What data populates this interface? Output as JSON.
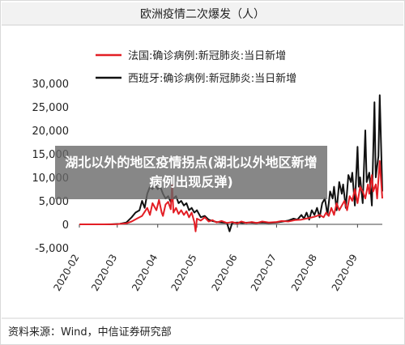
{
  "chart_data": {
    "type": "line",
    "title": "欧洲疫情二次爆发（人）",
    "xlabel": "",
    "ylabel": "",
    "ylim": [
      -5000,
      30000
    ],
    "yticks": [
      "30,000",
      "25,000",
      "20,000",
      "15,000",
      "10,000",
      "5,000",
      "0",
      "-5,000"
    ],
    "ytick_values": [
      30000,
      25000,
      20000,
      15000,
      10000,
      5000,
      0,
      -5000
    ],
    "xticks": [
      "2020-02",
      "2020-03",
      "2020-04",
      "2020-05",
      "2020-06",
      "2020-07",
      "2020-08",
      "2020-09"
    ],
    "xlim": [
      "2020-02-01",
      "2020-09-20"
    ],
    "grid": false,
    "legend_position": "top-left",
    "series": [
      {
        "name": "法国:确诊病例:新冠肺炎:当日新增",
        "color": "#e31e25",
        "points": [
          [
            "2020-02-01",
            0
          ],
          [
            "2020-02-20",
            0
          ],
          [
            "2020-03-01",
            50
          ],
          [
            "2020-03-08",
            200
          ],
          [
            "2020-03-12",
            600
          ],
          [
            "2020-03-16",
            1200
          ],
          [
            "2020-03-20",
            1800
          ],
          [
            "2020-03-24",
            3500
          ],
          [
            "2020-03-26",
            2000
          ],
          [
            "2020-03-28",
            4500
          ],
          [
            "2020-03-31",
            3000
          ],
          [
            "2020-04-02",
            5200
          ],
          [
            "2020-04-04",
            2500
          ],
          [
            "2020-04-05",
            1800
          ],
          [
            "2020-04-07",
            4200
          ],
          [
            "2020-04-09",
            4800
          ],
          [
            "2020-04-11",
            3200
          ],
          [
            "2020-04-12",
            8500
          ],
          [
            "2020-04-13",
            2500
          ],
          [
            "2020-04-15",
            3500
          ],
          [
            "2020-04-17",
            2200
          ],
          [
            "2020-04-19",
            3000
          ],
          [
            "2020-04-21",
            2000
          ],
          [
            "2020-04-23",
            2800
          ],
          [
            "2020-04-25",
            1500
          ],
          [
            "2020-04-27",
            2500
          ],
          [
            "2020-04-29",
            500
          ],
          [
            "2020-04-30",
            -1500
          ],
          [
            "2020-05-01",
            1200
          ],
          [
            "2020-05-04",
            800
          ],
          [
            "2020-05-07",
            1500
          ],
          [
            "2020-05-10",
            600
          ],
          [
            "2020-05-13",
            900
          ],
          [
            "2020-05-16",
            400
          ],
          [
            "2020-05-20",
            700
          ],
          [
            "2020-05-24",
            300
          ],
          [
            "2020-05-28",
            500
          ],
          [
            "2020-06-01",
            200
          ],
          [
            "2020-06-04",
            600
          ],
          [
            "2020-06-08",
            300
          ],
          [
            "2020-06-12",
            500
          ],
          [
            "2020-06-16",
            300
          ],
          [
            "2020-06-20",
            600
          ],
          [
            "2020-06-25",
            400
          ],
          [
            "2020-07-01",
            500
          ],
          [
            "2020-07-05",
            700
          ],
          [
            "2020-07-10",
            600
          ],
          [
            "2020-07-15",
            900
          ],
          [
            "2020-07-20",
            1000
          ],
          [
            "2020-07-25",
            1300
          ],
          [
            "2020-07-30",
            1600
          ],
          [
            "2020-08-03",
            2000
          ],
          [
            "2020-08-06",
            1500
          ],
          [
            "2020-08-08",
            2500
          ],
          [
            "2020-08-10",
            1800
          ],
          [
            "2020-08-12",
            3500
          ],
          [
            "2020-08-14",
            2000
          ],
          [
            "2020-08-16",
            4500
          ],
          [
            "2020-08-18",
            3000
          ],
          [
            "2020-08-20",
            4000
          ],
          [
            "2020-08-22",
            5000
          ],
          [
            "2020-08-24",
            3000
          ],
          [
            "2020-08-26",
            6000
          ],
          [
            "2020-08-28",
            5000
          ],
          [
            "2020-08-30",
            7500
          ],
          [
            "2020-09-01",
            4500
          ],
          [
            "2020-09-03",
            8000
          ],
          [
            "2020-09-05",
            7000
          ],
          [
            "2020-09-07",
            5500
          ],
          [
            "2020-09-09",
            8500
          ],
          [
            "2020-09-10",
            6500
          ],
          [
            "2020-09-12",
            10500
          ],
          [
            "2020-09-13",
            7000
          ],
          [
            "2020-09-15",
            8500
          ],
          [
            "2020-09-16",
            5500
          ],
          [
            "2020-09-18",
            13500
          ],
          [
            "2020-09-20",
            5500
          ]
        ]
      },
      {
        "name": "西班牙:确诊病例:新冠肺炎:当日新增",
        "color": "#111111",
        "points": [
          [
            "2020-02-01",
            0
          ],
          [
            "2020-02-25",
            0
          ],
          [
            "2020-03-03",
            100
          ],
          [
            "2020-03-08",
            400
          ],
          [
            "2020-03-12",
            1500
          ],
          [
            "2020-03-15",
            2500
          ],
          [
            "2020-03-18",
            3000
          ],
          [
            "2020-03-20",
            5000
          ],
          [
            "2020-03-22",
            3500
          ],
          [
            "2020-03-24",
            6500
          ],
          [
            "2020-03-26",
            8000
          ],
          [
            "2020-03-28",
            7500
          ],
          [
            "2020-03-30",
            8500
          ],
          [
            "2020-04-01",
            7500
          ],
          [
            "2020-04-03",
            8000
          ],
          [
            "2020-04-05",
            6500
          ],
          [
            "2020-04-07",
            5500
          ],
          [
            "2020-04-09",
            6000
          ],
          [
            "2020-04-11",
            4800
          ],
          [
            "2020-04-13",
            5500
          ],
          [
            "2020-04-15",
            6000
          ],
          [
            "2020-04-17",
            4500
          ],
          [
            "2020-04-19",
            5000
          ],
          [
            "2020-04-21",
            4000
          ],
          [
            "2020-04-23",
            4500
          ],
          [
            "2020-04-25",
            3000
          ],
          [
            "2020-04-27",
            3500
          ],
          [
            "2020-04-29",
            2500
          ],
          [
            "2020-05-01",
            3000
          ],
          [
            "2020-05-04",
            1500
          ],
          [
            "2020-05-07",
            1800
          ],
          [
            "2020-05-10",
            1000
          ],
          [
            "2020-05-13",
            700
          ],
          [
            "2020-05-16",
            500
          ],
          [
            "2020-05-20",
            400
          ],
          [
            "2020-05-24",
            300
          ],
          [
            "2020-05-26",
            -1500
          ],
          [
            "2020-05-28",
            300
          ],
          [
            "2020-06-01",
            400
          ],
          [
            "2020-06-05",
            300
          ],
          [
            "2020-06-10",
            400
          ],
          [
            "2020-06-15",
            300
          ],
          [
            "2020-06-20",
            400
          ],
          [
            "2020-06-25",
            300
          ],
          [
            "2020-07-01",
            400
          ],
          [
            "2020-07-06",
            600
          ],
          [
            "2020-07-10",
            800
          ],
          [
            "2020-07-14",
            1200
          ],
          [
            "2020-07-17",
            1000
          ],
          [
            "2020-07-20",
            2000
          ],
          [
            "2020-07-22",
            1200
          ],
          [
            "2020-07-24",
            2500
          ],
          [
            "2020-07-26",
            1000
          ],
          [
            "2020-07-28",
            3000
          ],
          [
            "2020-07-30",
            2000
          ],
          [
            "2020-08-01",
            3500
          ],
          [
            "2020-08-03",
            1500
          ],
          [
            "2020-08-05",
            4500
          ],
          [
            "2020-08-07",
            5500
          ],
          [
            "2020-08-09",
            2000
          ],
          [
            "2020-08-11",
            7000
          ],
          [
            "2020-08-13",
            5500
          ],
          [
            "2020-08-14",
            8000
          ],
          [
            "2020-08-16",
            3000
          ],
          [
            "2020-08-18",
            9000
          ],
          [
            "2020-08-20",
            6500
          ],
          [
            "2020-08-21",
            8500
          ],
          [
            "2020-08-23",
            3500
          ],
          [
            "2020-08-25",
            10500
          ],
          [
            "2020-08-27",
            9000
          ],
          [
            "2020-08-28",
            11000
          ],
          [
            "2020-08-30",
            4000
          ],
          [
            "2020-09-01",
            16500
          ],
          [
            "2020-09-02",
            8000
          ],
          [
            "2020-09-03",
            10000
          ],
          [
            "2020-09-05",
            4500
          ],
          [
            "2020-09-07",
            20000
          ],
          [
            "2020-09-08",
            9000
          ],
          [
            "2020-09-10",
            11000
          ],
          [
            "2020-09-12",
            4000
          ],
          [
            "2020-09-14",
            26000
          ],
          [
            "2020-09-15",
            10000
          ],
          [
            "2020-09-17",
            14500
          ],
          [
            "2020-09-18",
            27500
          ],
          [
            "2020-09-20",
            7000
          ]
        ]
      }
    ]
  },
  "overlay": {
    "text": "湖北以外的地区疫情拐点(湖北以外地区新增病例出现反弹)"
  },
  "source": {
    "text": "资料来源：Wind，中信证券研究部"
  }
}
